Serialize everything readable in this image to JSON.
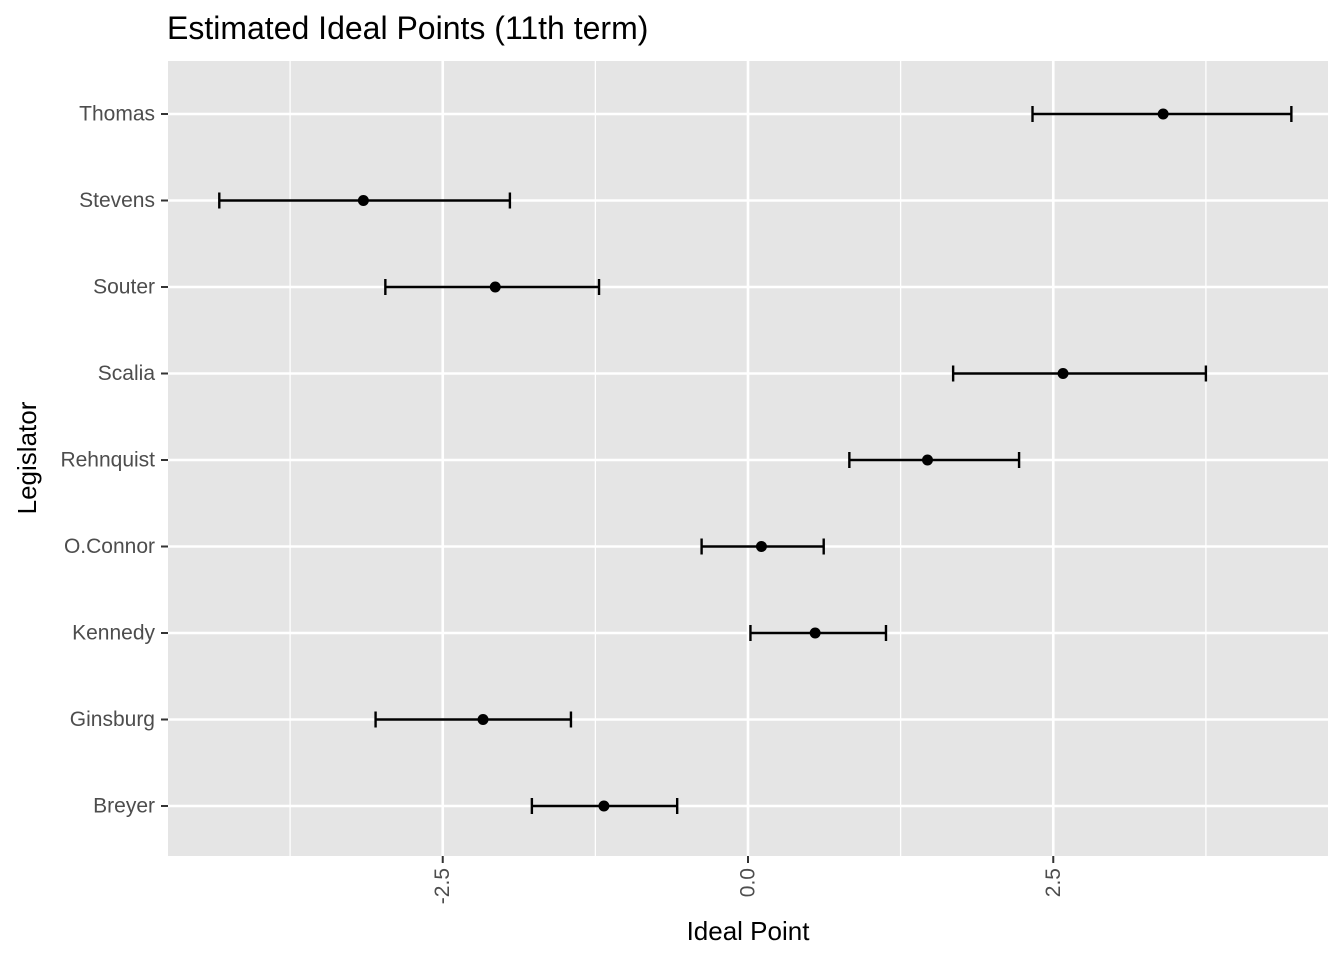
{
  "chart_data": {
    "type": "errorbar",
    "title": "Estimated Ideal Points (11th term)",
    "xlabel": "Ideal Point",
    "ylabel": "Legislator",
    "xlim": [
      -4.75,
      4.75
    ],
    "x_ticks": [
      -2.5,
      0.0,
      2.5
    ],
    "x_tick_labels": [
      "-2.5",
      "0.0",
      "2.5"
    ],
    "x_tick_label_rotation": "vertical",
    "grid": true,
    "legend": "none",
    "categories": [
      "Thomas",
      "Stevens",
      "Souter",
      "Scalia",
      "Rehnquist",
      "O.Connor",
      "Kennedy",
      "Ginsburg",
      "Breyer"
    ],
    "estimates": [
      3.4,
      -3.15,
      -2.07,
      2.58,
      1.47,
      0.11,
      0.55,
      -2.17,
      -1.18
    ],
    "lower": [
      2.33,
      -4.33,
      -2.97,
      1.68,
      0.83,
      -0.38,
      0.02,
      -3.05,
      -1.77
    ],
    "upper": [
      4.45,
      -1.95,
      -1.22,
      3.75,
      2.22,
      0.62,
      1.13,
      -1.45,
      -0.58
    ],
    "colors": {
      "panel": "#e5e5e5",
      "grid": "#ffffff",
      "marks": "#000000",
      "tick_label": "#4d4d4d"
    }
  }
}
